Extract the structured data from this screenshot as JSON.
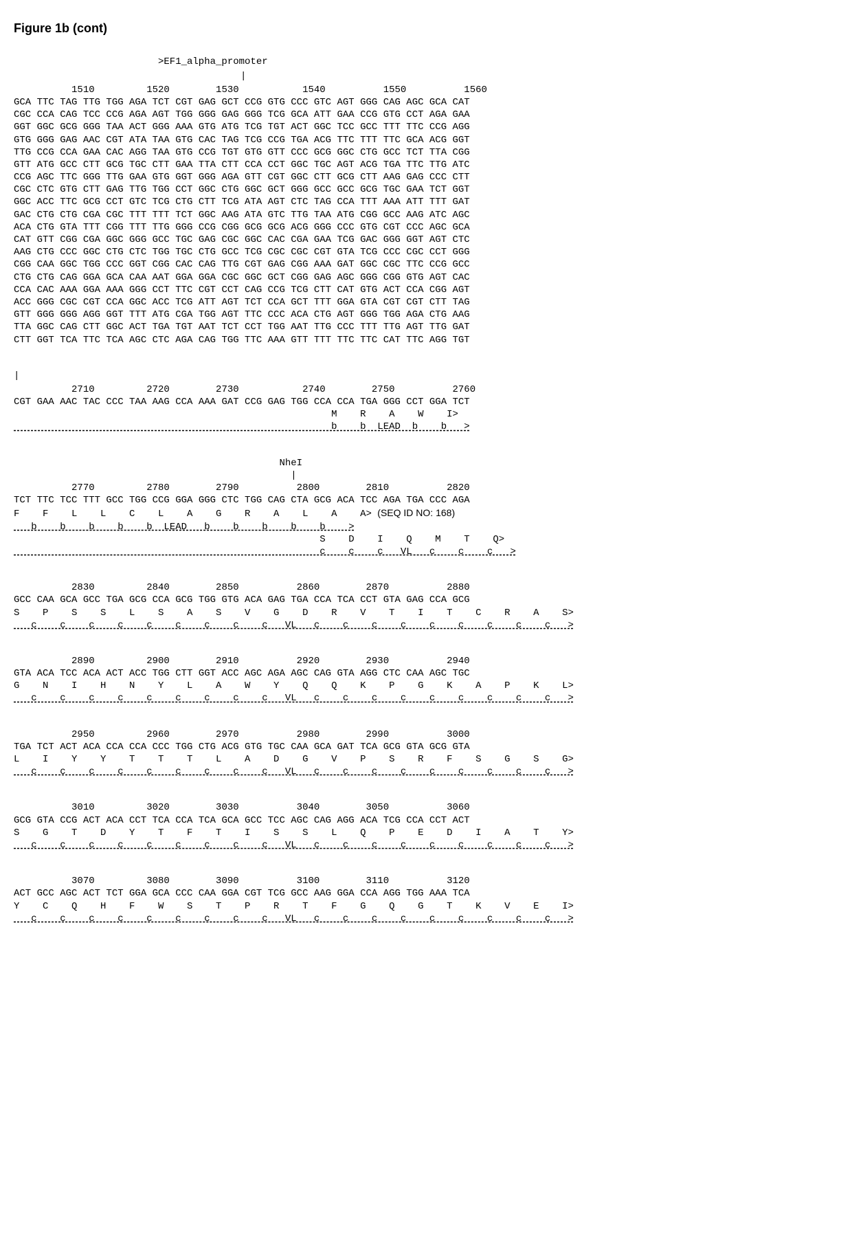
{
  "title": "Figure 1b (cont)",
  "feature_header": ">EF1_alpha_promoter",
  "tick1": "|",
  "cursor_mark": "|",
  "restriction_site": "NheI",
  "seq_id_note": "(SEQ ID NO: 168)",
  "blocks": [
    {
      "positions": "          1510         1520        1530           1540          1550          1560",
      "seq": "GCA TTC TAG TTG TGG AGA TCT CGT GAG GCT CCG GTG CCC GTC AGT GGG CAG AGC GCA CAT"
    },
    {
      "seq": "CGC CCA CAG TCC CCG AGA AGT TGG GGG GAG GGG TCG GCA ATT GAA CCG GTG CCT AGA GAA"
    },
    {
      "seq": "GGT GGC GCG GGG TAA ACT GGG AAA GTG ATG TCG TGT ACT GGC TCC GCC TTT TTC CCG AGG"
    },
    {
      "seq": "GTG GGG GAG AAC CGT ATA TAA GTG CAC TAG TCG CCG TGA ACG TTC TTT TTC GCA ACG GGT"
    },
    {
      "seq": "TTG CCG CCA GAA CAC AGG TAA GTG CCG TGT GTG GTT CCC GCG GGC CTG GCC TCT TTA CGG"
    },
    {
      "seq": "GTT ATG GCC CTT GCG TGC CTT GAA TTA CTT CCA CCT GGC TGC AGT ACG TGA TTC TTG ATC"
    },
    {
      "seq": "CCG AGC TTC GGG TTG GAA GTG GGT GGG AGA GTT CGT GGC CTT GCG CTT AAG GAG CCC CTT"
    },
    {
      "seq": "CGC CTC GTG CTT GAG TTG TGG CCT GGC CTG GGC GCT GGG GCC GCC GCG TGC GAA TCT GGT"
    },
    {
      "seq": "GGC ACC TTC GCG CCT GTC TCG CTG CTT TCG ATA AGT CTC TAG CCA TTT AAA ATT TTT GAT"
    },
    {
      "seq": "GAC CTG CTG CGA CGC TTT TTT TCT GGC AAG ATA GTC TTG TAA ATG CGG GCC AAG ATC AGC"
    },
    {
      "seq": "ACA CTG GTA TTT CGG TTT TTG GGG CCG CGG GCG GCG ACG GGG CCC GTG CGT CCC AGC GCA"
    },
    {
      "seq": "CAT GTT CGG CGA GGC GGG GCC TGC GAG CGC GGC CAC CGA GAA TCG GAC GGG GGT AGT CTC"
    },
    {
      "seq": "AAG CTG CCC GGC CTG CTC TGG TGC CTG GCC TCG CGC CGC CGT GTA TCG CCC CGC CCT GGG"
    },
    {
      "seq": "CGG CAA GGC TGG CCC GGT CGG CAC CAG TTG CGT GAG CGG AAA GAT GGC CGC TTC CCG GCC"
    },
    {
      "seq": "CTG CTG CAG GGA GCA CAA AAT GGA GGA CGC GGC GCT CGG GAG AGC GGG CGG GTG AGT CAC"
    },
    {
      "seq": "CCA CAC AAA GGA AAA GGG CCT TTC CGT CCT CAG CCG TCG CTT CAT GTG ACT CCA CGG AGT"
    },
    {
      "seq": "ACC GGG CGC CGT CCA GGC ACC TCG ATT AGT TCT CCA GCT TTT GGA GTA CGT CGT CTT TAG"
    },
    {
      "seq": "GTT GGG GGG AGG GGT TTT ATG CGA TGG AGT TTC CCC ACA CTG AGT GGG TGG AGA CTG AAG"
    },
    {
      "seq": "TTA GGC CAG CTT GGC ACT TGA TGT AAT TCT CCT TGG AAT TTG CCC TTT TTG AGT TTG GAT"
    },
    {
      "seq": "CTT GGT TCA TTC TCA AGC CTC AGA CAG TGG TTC AAA GTT TTT TTC TTC CAT TTC AGG TGT"
    }
  ],
  "block2": {
    "positions": "          2710         2720        2730           2740        2750          2760",
    "seq": "CGT GAA AAC TAC CCC TAA AAG CCA AAA GAT CCG GAG TGG CCA CCA TGA GGG CCT GGA TCT",
    "aa": "                                                       M    R    A    W    I>",
    "anno": "                                                       b    b  LEAD  b    b   >"
  },
  "block3": {
    "restriction_line": "                                              NheI",
    "restriction_tick": "                                                |",
    "positions": "          2770         2780        2790          2800        2810          2820",
    "seq": "TCT TTC TCC TTT GCC TGG CCG GGA GGG CTC TGG CAG CTA GCG ACA TCC AGA TGA CCC AGA",
    "aa1": "F    F    L    L    C    L    A    G    R    A    L    A    A>",
    "anno1": "   b    b    b    b    b  LEAD   b    b    b    b    b    >",
    "aa2": "                                                     S    D    I    Q    M    T    Q>",
    "anno2": "                                                     c    c    c   VL   c    c    c   >"
  },
  "block4": {
    "positions": "          2830         2840        2850          2860        2870          2880",
    "seq": "GCC CAA GCA GCC TGA GCG CCA GCG TGG GTG ACA GAG TGA CCA TCA CCT GTA GAG CCA GCG",
    "aa": "S    P    S    S    L    S    A    S    V    G    D    R    V    T    I    T    C    R    A    S>",
    "anno": "   c    c    c    c    c    c    c    c    c   VL   c    c    c    c    c    c    c    c    c   >"
  },
  "block5": {
    "positions": "          2890         2900        2910          2920        2930          2940",
    "seq": "GTA ACA TCC ACA ACT ACC TGG CTT GGT ACC AGC AGA AGC CAG GTA AGG CTC CAA AGC TGC",
    "aa": "G    N    I    H    N    Y    L    A    W    Y    Q    Q    K    P    G    K    A    P    K    L>",
    "anno": "   c    c    c    c    c    c    c    c    c   VL   c    c    c    c    c    c    c    c    c   >"
  },
  "block6": {
    "positions": "          2950         2960        2970          2980        2990          3000",
    "seq": "TGA TCT ACT ACA CCA CCA CCC TGG CTG ACG GTG TGC CAA GCA GAT TCA GCG GTA GCG GTA",
    "aa": "L    I    Y    Y    T    T    T    L    A    D    G    V    P    S    R    F    S    G    S    G>",
    "anno": "   c    c    c    c    c    c    c    c    c   VL   c    c    c    c    c    c    c    c    c   >"
  },
  "block7": {
    "positions": "          3010         3020        3030          3040        3050          3060",
    "seq": "GCG GTA CCG ACT ACA CCT TCA CCA TCA GCA GCC TCC AGC CAG AGG ACA TCG CCA CCT ACT",
    "aa": "S    G    T    D    Y    T    F    T    I    S    S    L    Q    P    E    D    I    A    T    Y>",
    "anno": "   c    c    c    c    c    c    c    c    c   VL   c    c    c    c    c    c    c    c    c   >"
  },
  "block8": {
    "positions": "          3070         3080        3090          3100        3110          3120",
    "seq": "ACT GCC AGC ACT TCT GGA GCA CCC CAA GGA CGT TCG GCC AAG GGA CCA AGG TGG AAA TCA",
    "aa": "Y    C    Q    H    F    W    S    T    P    R    T    F    G    Q    G    T    K    V    E    I>",
    "anno": "   c    c    c    c    c    c    c    c    c   VL   c    c    c    c    c    c    c    c    c   >"
  }
}
